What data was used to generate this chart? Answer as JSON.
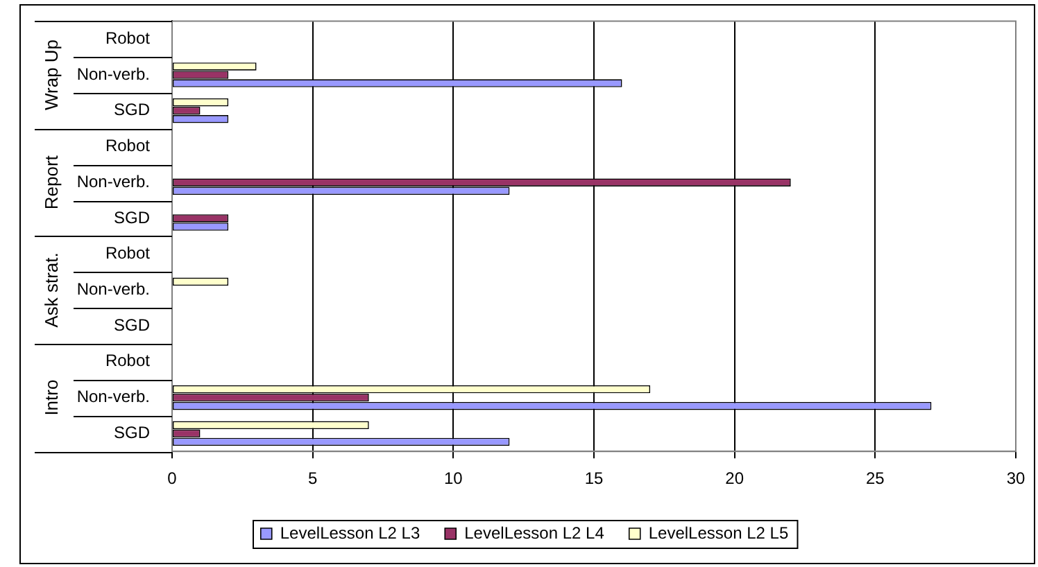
{
  "chart_data": {
    "type": "bar",
    "orientation": "horizontal",
    "categories": [
      "Robot",
      "Non-verb.",
      "SGD",
      "Robot",
      "Non-verb.",
      "SGD",
      "Robot",
      "Non-verb.",
      "SGD",
      "Robot",
      "Non-verb.",
      "SGD"
    ],
    "annotations": [
      "Wrap Up",
      "Report",
      "Ask strat.",
      "Intro"
    ],
    "series": [
      {
        "name": "LevelLesson L2 L3",
        "color": "#9999ff",
        "values": [
          0,
          16,
          2,
          0,
          12,
          2,
          0,
          0,
          0,
          0,
          27,
          12
        ]
      },
      {
        "name": "LevelLesson L2 L4",
        "color": "#993366",
        "values": [
          0,
          2,
          1,
          0,
          22,
          2,
          0,
          0,
          0,
          0,
          7,
          1
        ]
      },
      {
        "name": "LevelLesson L2 L5",
        "color": "#ffffcc",
        "values": [
          0,
          3,
          2,
          0,
          0,
          0,
          0,
          2,
          0,
          0,
          17,
          7
        ]
      }
    ],
    "xlim": [
      0,
      30
    ],
    "xticks": [
      0,
      5,
      10,
      15,
      20,
      25,
      30
    ],
    "grid": "x",
    "legend": "bottom"
  }
}
